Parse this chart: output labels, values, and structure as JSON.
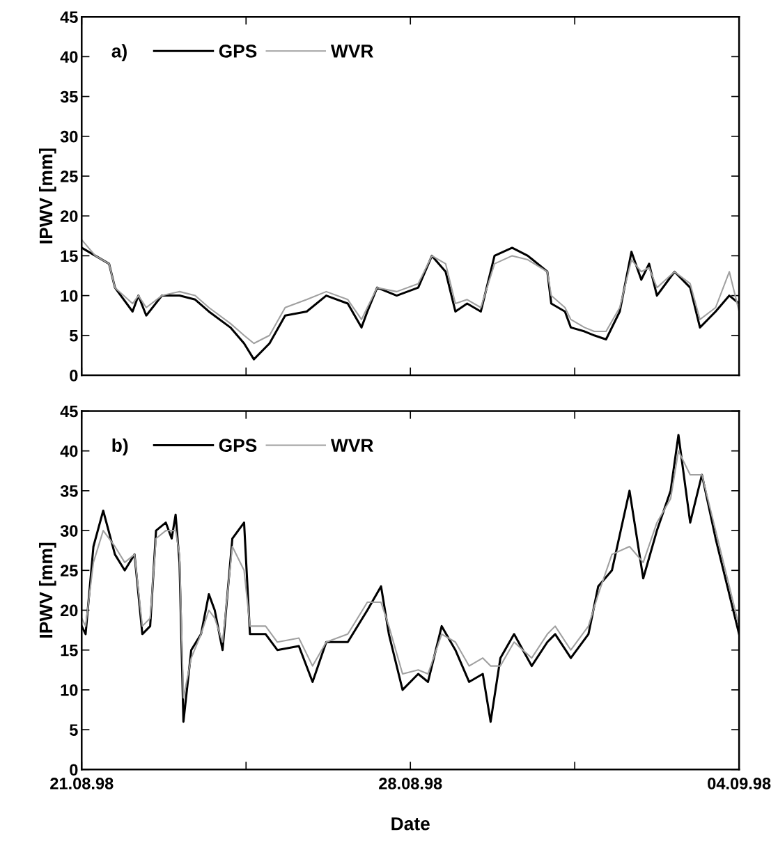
{
  "chart_data": [
    {
      "type": "line",
      "annotations": [
        "a)"
      ],
      "ylabel": "IPWV [mm]",
      "legend": "top left",
      "grid": false,
      "tick_labels": "y",
      "xlim": [
        "1998-08-21",
        "1998-09-04"
      ],
      "xticks": [
        {
          "value": "1998-08-21",
          "label": null
        },
        {
          "value": "1998-08-24T12:00",
          "label": null
        },
        {
          "value": "1998-08-28",
          "label": null
        },
        {
          "value": "1998-08-31T12:00",
          "label": null
        },
        {
          "value": "1998-09-04",
          "label": null
        }
      ],
      "ylim": [
        0,
        45
      ],
      "yticks": [
        0,
        5,
        10,
        15,
        20,
        25,
        30,
        35,
        40,
        45
      ],
      "series": [
        {
          "name": "GPS",
          "color": "#000000",
          "x": [
            "1998-08-21T00:00",
            "1998-08-21T07:00",
            "1998-08-21T14:00",
            "1998-08-21T17:00",
            "1998-08-22T02:00",
            "1998-08-22T05:00",
            "1998-08-22T09:00",
            "1998-08-22T17:00",
            "1998-08-23T02:00",
            "1998-08-23T10:00",
            "1998-08-23T17:00",
            "1998-08-24T04:00",
            "1998-08-24T11:00",
            "1998-08-24T16:00",
            "1998-08-25T00:00",
            "1998-08-25T08:00",
            "1998-08-25T19:00",
            "1998-08-26T05:00",
            "1998-08-26T16:00",
            "1998-08-26T23:00",
            "1998-08-27T02:00",
            "1998-08-27T07:00",
            "1998-08-27T17:00",
            "1998-08-28T04:00",
            "1998-08-28T11:00",
            "1998-08-28T18:00",
            "1998-08-28T23:00",
            "1998-08-29T05:00",
            "1998-08-29T12:00",
            "1998-08-29T19:00",
            "1998-08-30T04:00",
            "1998-08-30T12:00",
            "1998-08-30T22:00",
            "1998-08-31T00:00",
            "1998-08-31T07:00",
            "1998-08-31T10:00",
            "1998-08-31T17:00",
            "1998-08-31T22:00",
            "1998-09-01T04:00",
            "1998-09-01T11:00",
            "1998-09-01T17:00",
            "1998-09-01T22:00",
            "1998-09-02T02:00",
            "1998-09-02T06:00",
            "1998-09-02T15:00",
            "1998-09-02T23:00",
            "1998-09-03T04:00",
            "1998-09-03T12:00",
            "1998-09-03T19:00",
            "1998-09-04T00:00"
          ],
          "values": [
            16,
            15,
            14,
            11,
            8,
            10,
            7.5,
            10,
            10,
            9.5,
            8,
            6,
            4,
            2,
            4,
            7.5,
            8,
            10,
            9,
            6,
            8,
            11,
            10,
            11,
            15,
            13,
            8,
            9,
            8,
            15,
            16,
            15,
            13,
            9,
            8,
            6,
            5.5,
            5,
            4.5,
            8,
            15.5,
            12,
            14,
            10,
            13,
            11,
            6,
            8,
            10,
            9
          ]
        },
        {
          "name": "WVR",
          "color": "#a0a0a0",
          "x": [
            "1998-08-21T00:00",
            "1998-08-21T07:00",
            "1998-08-21T14:00",
            "1998-08-21T17:00",
            "1998-08-22T02:00",
            "1998-08-22T05:00",
            "1998-08-22T09:00",
            "1998-08-22T17:00",
            "1998-08-23T02:00",
            "1998-08-23T10:00",
            "1998-08-23T17:00",
            "1998-08-24T04:00",
            "1998-08-24T11:00",
            "1998-08-24T16:00",
            "1998-08-25T00:00",
            "1998-08-25T08:00",
            "1998-08-25T19:00",
            "1998-08-26T05:00",
            "1998-08-26T16:00",
            "1998-08-26T23:00",
            "1998-08-27T02:00",
            "1998-08-27T07:00",
            "1998-08-27T17:00",
            "1998-08-28T04:00",
            "1998-08-28T11:00",
            "1998-08-28T18:00",
            "1998-08-28T23:00",
            "1998-08-29T05:00",
            "1998-08-29T12:00",
            "1998-08-29T19:00",
            "1998-08-30T04:00",
            "1998-08-30T12:00",
            "1998-08-30T22:00",
            "1998-08-31T00:00",
            "1998-08-31T07:00",
            "1998-08-31T10:00",
            "1998-08-31T17:00",
            "1998-08-31T22:00",
            "1998-09-01T04:00",
            "1998-09-01T11:00",
            "1998-09-01T17:00",
            "1998-09-01T22:00",
            "1998-09-02T02:00",
            "1998-09-02T06:00",
            "1998-09-02T15:00",
            "1998-09-02T23:00",
            "1998-09-03T04:00",
            "1998-09-03T12:00",
            "1998-09-03T19:00",
            "1998-09-04T00:00"
          ],
          "values": [
            17,
            15,
            14,
            11,
            9,
            10,
            8.5,
            10,
            10.5,
            10,
            8.5,
            6.5,
            5,
            4,
            5,
            8.5,
            9.5,
            10.5,
            9.5,
            7,
            8.5,
            11,
            10.5,
            11.5,
            15,
            14,
            9,
            9.5,
            8.5,
            14,
            15,
            14.5,
            13,
            10,
            8.5,
            7,
            6,
            5.5,
            5.5,
            8.5,
            14.5,
            13,
            13.5,
            11,
            13,
            11.5,
            7,
            8.5,
            13,
            8
          ]
        }
      ]
    },
    {
      "type": "line",
      "annotations": [
        "b)"
      ],
      "ylabel": "IPWV [mm]",
      "xlabel": "Date",
      "legend": "top left",
      "grid": false,
      "xlim": [
        "1998-08-21",
        "1998-09-04"
      ],
      "xticks": [
        {
          "value": "1998-08-21",
          "label": "21.08.98"
        },
        {
          "value": "1998-08-24T12:00",
          "label": null
        },
        {
          "value": "1998-08-28",
          "label": "28.08.98"
        },
        {
          "value": "1998-08-31T12:00",
          "label": null
        },
        {
          "value": "1998-09-04",
          "label": "04.09.98"
        }
      ],
      "ylim": [
        0,
        45
      ],
      "yticks": [
        0,
        5,
        10,
        15,
        20,
        25,
        30,
        35,
        40,
        45
      ],
      "series": [
        {
          "name": "GPS",
          "color": "#000000",
          "x": [
            "1998-08-21T00:00",
            "1998-08-21T02:00",
            "1998-08-21T06:00",
            "1998-08-21T11:00",
            "1998-08-21T17:00",
            "1998-08-21T22:00",
            "1998-08-22T03:00",
            "1998-08-22T07:00",
            "1998-08-22T11:00",
            "1998-08-22T14:00",
            "1998-08-22T19:00",
            "1998-08-22T22:00",
            "1998-08-23T00:00",
            "1998-08-23T02:00",
            "1998-08-23T04:00",
            "1998-08-23T08:00",
            "1998-08-23T13:00",
            "1998-08-23T17:00",
            "1998-08-23T20:00",
            "1998-08-24T00:00",
            "1998-08-24T05:00",
            "1998-08-24T11:00",
            "1998-08-24T14:00",
            "1998-08-24T22:00",
            "1998-08-25T04:00",
            "1998-08-25T15:00",
            "1998-08-25T22:00",
            "1998-08-26T05:00",
            "1998-08-26T16:00",
            "1998-08-27T02:00",
            "1998-08-27T09:00",
            "1998-08-27T13:00",
            "1998-08-27T20:00",
            "1998-08-28T04:00",
            "1998-08-28T09:00",
            "1998-08-28T16:00",
            "1998-08-28T23:00",
            "1998-08-29T06:00",
            "1998-08-29T13:00",
            "1998-08-29T17:00",
            "1998-08-29T22:00",
            "1998-08-30T05:00",
            "1998-08-30T14:00",
            "1998-08-30T22:00",
            "1998-08-31T02:00",
            "1998-08-31T10:00",
            "1998-08-31T19:00",
            "1998-09-01T00:00",
            "1998-09-01T07:00",
            "1998-09-01T16:00",
            "1998-09-01T23:00",
            "1998-09-02T06:00",
            "1998-09-02T13:00",
            "1998-09-02T17:00",
            "1998-09-02T23:00",
            "1998-09-03T05:00",
            "1998-09-03T12:00",
            "1998-09-03T18:00",
            "1998-09-04T00:00"
          ],
          "values": [
            18,
            17,
            28,
            32.5,
            27,
            25,
            27,
            17,
            18,
            30,
            31,
            29,
            32,
            26,
            6,
            15,
            17,
            22,
            20,
            15,
            29,
            31,
            17,
            17,
            15,
            15.5,
            11,
            16,
            16,
            20,
            23,
            17,
            10,
            12,
            11,
            18,
            15,
            11,
            12,
            6,
            14,
            17,
            13,
            16,
            17,
            14,
            17,
            23,
            25,
            35,
            24,
            30,
            35,
            42,
            31,
            37,
            29,
            23,
            17
          ]
        },
        {
          "name": "WVR",
          "color": "#a0a0a0",
          "x": [
            "1998-08-21T00:00",
            "1998-08-21T02:00",
            "1998-08-21T06:00",
            "1998-08-21T11:00",
            "1998-08-21T17:00",
            "1998-08-21T22:00",
            "1998-08-22T03:00",
            "1998-08-22T07:00",
            "1998-08-22T11:00",
            "1998-08-22T14:00",
            "1998-08-22T19:00",
            "1998-08-22T22:00",
            "1998-08-23T00:00",
            "1998-08-23T02:00",
            "1998-08-23T04:00",
            "1998-08-23T08:00",
            "1998-08-23T13:00",
            "1998-08-23T17:00",
            "1998-08-23T20:00",
            "1998-08-24T00:00",
            "1998-08-24T05:00",
            "1998-08-24T11:00",
            "1998-08-24T14:00",
            "1998-08-24T22:00",
            "1998-08-25T04:00",
            "1998-08-25T15:00",
            "1998-08-25T22:00",
            "1998-08-26T05:00",
            "1998-08-26T16:00",
            "1998-08-27T02:00",
            "1998-08-27T09:00",
            "1998-08-27T13:00",
            "1998-08-27T20:00",
            "1998-08-28T04:00",
            "1998-08-28T09:00",
            "1998-08-28T16:00",
            "1998-08-28T23:00",
            "1998-08-29T06:00",
            "1998-08-29T13:00",
            "1998-08-29T17:00",
            "1998-08-29T22:00",
            "1998-08-30T05:00",
            "1998-08-30T14:00",
            "1998-08-30T22:00",
            "1998-08-31T02:00",
            "1998-08-31T10:00",
            "1998-08-31T19:00",
            "1998-09-01T00:00",
            "1998-09-01T07:00",
            "1998-09-01T16:00",
            "1998-09-01T23:00",
            "1998-09-02T06:00",
            "1998-09-02T13:00",
            "1998-09-02T17:00",
            "1998-09-02T23:00",
            "1998-09-03T05:00",
            "1998-09-03T12:00",
            "1998-09-03T18:00",
            "1998-09-04T00:00"
          ],
          "values": [
            19,
            18,
            26,
            30,
            28,
            26,
            27,
            18,
            19,
            29,
            30,
            30,
            30,
            27,
            9,
            14,
            17,
            20,
            19,
            16,
            28,
            25,
            18,
            18,
            16,
            16.5,
            13,
            16,
            17,
            21,
            21,
            18,
            12,
            12.5,
            12,
            17,
            16,
            13,
            14,
            13,
            13,
            16,
            14,
            17,
            18,
            15,
            18,
            22,
            27,
            28,
            26,
            31,
            34,
            40,
            37,
            37,
            30,
            24,
            18
          ]
        }
      ]
    }
  ]
}
